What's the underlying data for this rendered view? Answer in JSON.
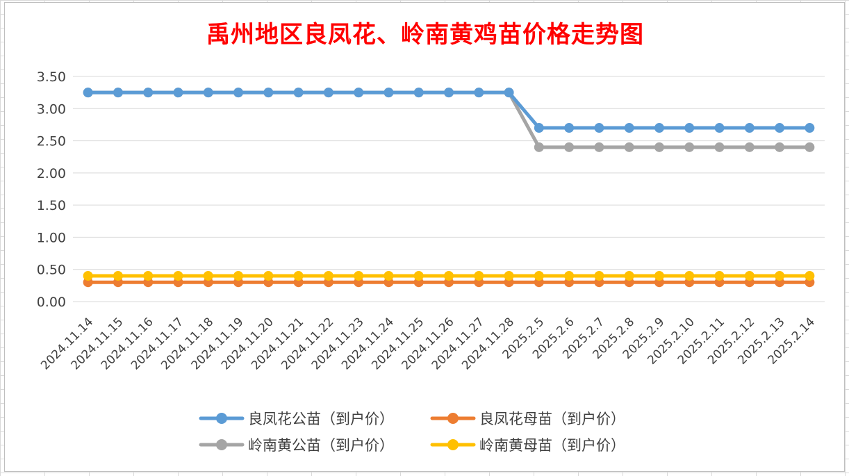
{
  "chart_data": {
    "type": "line",
    "title": "禹州地区良凤花、岭南黄鸡苗价格走势图",
    "xlabel": "",
    "ylabel": "",
    "ylim": [
      0,
      3.5
    ],
    "yticks": [
      "0.00",
      "0.50",
      "1.00",
      "1.50",
      "2.00",
      "2.50",
      "3.00",
      "3.50"
    ],
    "grid": true,
    "legend_position": "bottom",
    "categories": [
      "2024.11.14",
      "2024.11.15",
      "2024.11.16",
      "2024.11.17",
      "2024.11.18",
      "2024.11.19",
      "2024.11.20",
      "2024.11.21",
      "2024.11.22",
      "2024.11.23",
      "2024.11.24",
      "2024.11.25",
      "2024.11.26",
      "2024.11.27",
      "2024.11.28",
      "2025.2.5",
      "2025.2.6",
      "2025.2.7",
      "2025.2.8",
      "2025.2.9",
      "2025.2.10",
      "2025.2.11",
      "2025.2.12",
      "2025.2.13",
      "2025.2.14"
    ],
    "series": [
      {
        "name": "良凤花公苗（到户价）",
        "color": "#5b9bd5",
        "values": [
          3.25,
          3.25,
          3.25,
          3.25,
          3.25,
          3.25,
          3.25,
          3.25,
          3.25,
          3.25,
          3.25,
          3.25,
          3.25,
          3.25,
          3.25,
          2.7,
          2.7,
          2.7,
          2.7,
          2.7,
          2.7,
          2.7,
          2.7,
          2.7,
          2.7
        ]
      },
      {
        "name": "良凤花母苗（到户价）",
        "color": "#ed7d31",
        "values": [
          0.3,
          0.3,
          0.3,
          0.3,
          0.3,
          0.3,
          0.3,
          0.3,
          0.3,
          0.3,
          0.3,
          0.3,
          0.3,
          0.3,
          0.3,
          0.3,
          0.3,
          0.3,
          0.3,
          0.3,
          0.3,
          0.3,
          0.3,
          0.3,
          0.3
        ]
      },
      {
        "name": "岭南黄公苗（到户价）",
        "color": "#a5a5a5",
        "values": [
          3.25,
          3.25,
          3.25,
          3.25,
          3.25,
          3.25,
          3.25,
          3.25,
          3.25,
          3.25,
          3.25,
          3.25,
          3.25,
          3.25,
          3.25,
          2.4,
          2.4,
          2.4,
          2.4,
          2.4,
          2.4,
          2.4,
          2.4,
          2.4,
          2.4
        ]
      },
      {
        "name": "岭南黄母苗（到户价）",
        "color": "#ffc000",
        "values": [
          0.4,
          0.4,
          0.4,
          0.4,
          0.4,
          0.4,
          0.4,
          0.4,
          0.4,
          0.4,
          0.4,
          0.4,
          0.4,
          0.4,
          0.4,
          0.4,
          0.4,
          0.4,
          0.4,
          0.4,
          0.4,
          0.4,
          0.4,
          0.4,
          0.4
        ]
      }
    ]
  }
}
